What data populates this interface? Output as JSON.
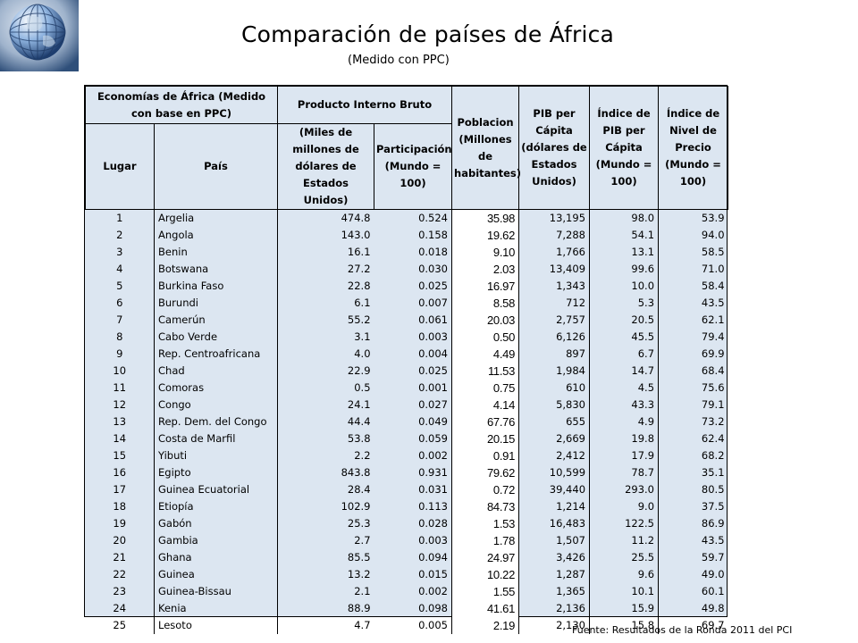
{
  "title": "Comparación de países de África",
  "subtitle": "(Medido con PPC)",
  "headers": {
    "economias": "Economías de África (Medido con base en PPC)",
    "pib": "Producto Interno Bruto",
    "poblacion": "Poblacion (Millones de habitantes)",
    "pib_per_capita": "PIB per Cápita (dólares de Estados Unidos)",
    "indice_pib": "Índice de PIB per Cápita (Mundo = 100)",
    "indice_precio": "Índice de Nivel de Precio (Mundo = 100)",
    "lugar": "Lugar",
    "pais": "País",
    "miles_millones": "(Miles de millones de dólares de Estados Unidos)",
    "participacion": "Participación (Mundo = 100)"
  },
  "rows": [
    {
      "lugar": "1",
      "pais": "Argelia",
      "pib": "474.8",
      "part": "0.524",
      "pob": "35.98",
      "pcap": "13,195",
      "ipib": "98.0",
      "iprec": "53.9"
    },
    {
      "lugar": "2",
      "pais": "Angola",
      "pib": "143.0",
      "part": "0.158",
      "pob": "19.62",
      "pcap": "7,288",
      "ipib": "54.1",
      "iprec": "94.0"
    },
    {
      "lugar": "3",
      "pais": "Benin",
      "pib": "16.1",
      "part": "0.018",
      "pob": "9.10",
      "pcap": "1,766",
      "ipib": "13.1",
      "iprec": "58.5"
    },
    {
      "lugar": "4",
      "pais": "Botswana",
      "pib": "27.2",
      "part": "0.030",
      "pob": "2.03",
      "pcap": "13,409",
      "ipib": "99.6",
      "iprec": "71.0"
    },
    {
      "lugar": "5",
      "pais": "Burkina Faso",
      "pib": "22.8",
      "part": "0.025",
      "pob": "16.97",
      "pcap": "1,343",
      "ipib": "10.0",
      "iprec": "58.4"
    },
    {
      "lugar": "6",
      "pais": "Burundi",
      "pib": "6.1",
      "part": "0.007",
      "pob": "8.58",
      "pcap": "712",
      "ipib": "5.3",
      "iprec": "43.5"
    },
    {
      "lugar": "7",
      "pais": "Camerún",
      "pib": "55.2",
      "part": "0.061",
      "pob": "20.03",
      "pcap": "2,757",
      "ipib": "20.5",
      "iprec": "62.1"
    },
    {
      "lugar": "8",
      "pais": "Cabo Verde",
      "pib": "3.1",
      "part": "0.003",
      "pob": "0.50",
      "pcap": "6,126",
      "ipib": "45.5",
      "iprec": "79.4"
    },
    {
      "lugar": "9",
      "pais": "Rep. Centroafricana",
      "pib": "4.0",
      "part": "0.004",
      "pob": "4.49",
      "pcap": "897",
      "ipib": "6.7",
      "iprec": "69.9"
    },
    {
      "lugar": "10",
      "pais": "Chad",
      "pib": "22.9",
      "part": "0.025",
      "pob": "11.53",
      "pcap": "1,984",
      "ipib": "14.7",
      "iprec": "68.4"
    },
    {
      "lugar": "11",
      "pais": "Comoras",
      "pib": "0.5",
      "part": "0.001",
      "pob": "0.75",
      "pcap": "610",
      "ipib": "4.5",
      "iprec": "75.6"
    },
    {
      "lugar": "12",
      "pais": "Congo",
      "pib": "24.1",
      "part": "0.027",
      "pob": "4.14",
      "pcap": "5,830",
      "ipib": "43.3",
      "iprec": "79.1"
    },
    {
      "lugar": "13",
      "pais": "Rep. Dem. del Congo",
      "pib": "44.4",
      "part": "0.049",
      "pob": "67.76",
      "pcap": "655",
      "ipib": "4.9",
      "iprec": "73.2"
    },
    {
      "lugar": "14",
      "pais": "Costa de Marfil",
      "pib": "53.8",
      "part": "0.059",
      "pob": "20.15",
      "pcap": "2,669",
      "ipib": "19.8",
      "iprec": "62.4"
    },
    {
      "lugar": "15",
      "pais": "Yibuti",
      "pib": "2.2",
      "part": "0.002",
      "pob": "0.91",
      "pcap": "2,412",
      "ipib": "17.9",
      "iprec": "68.2"
    },
    {
      "lugar": "16",
      "pais": "Egipto",
      "pib": "843.8",
      "part": "0.931",
      "pob": "79.62",
      "pcap": "10,599",
      "ipib": "78.7",
      "iprec": "35.1"
    },
    {
      "lugar": "17",
      "pais": "Guinea Ecuatorial",
      "pib": "28.4",
      "part": "0.031",
      "pob": "0.72",
      "pcap": "39,440",
      "ipib": "293.0",
      "iprec": "80.5"
    },
    {
      "lugar": "18",
      "pais": "Etiopía",
      "pib": "102.9",
      "part": "0.113",
      "pob": "84.73",
      "pcap": "1,214",
      "ipib": "9.0",
      "iprec": "37.5"
    },
    {
      "lugar": "19",
      "pais": "Gabón",
      "pib": "25.3",
      "part": "0.028",
      "pob": "1.53",
      "pcap": "16,483",
      "ipib": "122.5",
      "iprec": "86.9"
    },
    {
      "lugar": "20",
      "pais": "Gambia",
      "pib": "2.7",
      "part": "0.003",
      "pob": "1.78",
      "pcap": "1,507",
      "ipib": "11.2",
      "iprec": "43.5"
    },
    {
      "lugar": "21",
      "pais": "Ghana",
      "pib": "85.5",
      "part": "0.094",
      "pob": "24.97",
      "pcap": "3,426",
      "ipib": "25.5",
      "iprec": "59.7"
    },
    {
      "lugar": "22",
      "pais": "Guinea",
      "pib": "13.2",
      "part": "0.015",
      "pob": "10.22",
      "pcap": "1,287",
      "ipib": "9.6",
      "iprec": "49.0"
    },
    {
      "lugar": "23",
      "pais": "Guinea-Bissau",
      "pib": "2.1",
      "part": "0.002",
      "pob": "1.55",
      "pcap": "1,365",
      "ipib": "10.1",
      "iprec": "60.1"
    },
    {
      "lugar": "24",
      "pais": "Kenia",
      "pib": "88.9",
      "part": "0.098",
      "pob": "41.61",
      "pcap": "2,136",
      "ipib": "15.9",
      "iprec": "49.8"
    },
    {
      "lugar": "25",
      "pais": "Lesoto",
      "pib": "4.7",
      "part": "0.005",
      "pob": "2.19",
      "pcap": "2,130",
      "ipib": "15.8",
      "iprec": "69.7"
    }
  ],
  "source": "Fuente: Resultados de la Ronda 2011  del PCI",
  "colors": {
    "table_bg": "#dce6f1",
    "highlight_bg": "#ffffff"
  }
}
